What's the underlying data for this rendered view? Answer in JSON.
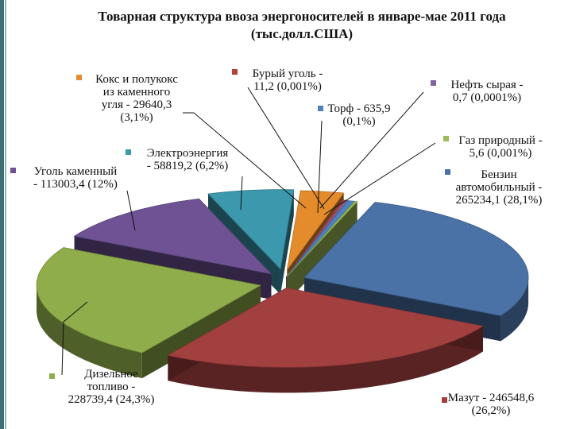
{
  "chart_data": {
    "type": "pie",
    "title_line1": "Товарная структура ввоза энергоносителей в январе-мае 2011 года",
    "title_line2": "(тыс.долл.США)",
    "slices": [
      {
        "name": "Бензин автомобильный",
        "value": 265234.1,
        "percent": 28.1,
        "color": "#4a72a6",
        "label_lines": [
          "Бензин",
          "автомобильный -",
          "265234,1 (28,1%)"
        ]
      },
      {
        "name": "Мазут",
        "value": 246548.6,
        "percent": 26.2,
        "color": "#a23f3f",
        "label_lines": [
          "Мазут - 246548,6",
          "(26,2%)"
        ]
      },
      {
        "name": "Дизельное топливо",
        "value": 228739.4,
        "percent": 24.3,
        "color": "#8fad4a",
        "label_lines": [
          "Дизельное",
          "топливо -",
          "228739,4 (24,3%)"
        ]
      },
      {
        "name": "Уголь каменный",
        "value": 113003.4,
        "percent": 12.0,
        "color": "#6e5294",
        "label_lines": [
          "Уголь каменный",
          "- 113003,4 (12%)"
        ]
      },
      {
        "name": "Электроэнергия",
        "value": 58819.2,
        "percent": 6.2,
        "color": "#3b98ad",
        "label_lines": [
          "Электроэнергия",
          "- 58819,2 (6,2%)"
        ]
      },
      {
        "name": "Кокс и полукокс из каменного угля",
        "value": 29640.3,
        "percent": 3.1,
        "color": "#e48b2c",
        "label_lines": [
          "Кокс и полукокс",
          "из каменного",
          "угля - 29640,3",
          "(3,1%)"
        ]
      },
      {
        "name": "Бурый уголь",
        "value": 11.2,
        "percent": 0.001,
        "color": "#b3423d",
        "label_lines": [
          "Бурый уголь -",
          "11,2 (0,001%)"
        ]
      },
      {
        "name": "Нефть сырая",
        "value": 0.7,
        "percent": 0.0001,
        "color": "#8064a2",
        "label_lines": [
          "Нефть сырая -",
          "0,7 (0,0001%)"
        ]
      },
      {
        "name": "Торф",
        "value": 635.9,
        "percent": 0.1,
        "color": "#4f81bd",
        "label_lines": [
          "Торф - 635,9",
          "(0,1%)"
        ]
      },
      {
        "name": "Газ природный",
        "value": 5.6,
        "percent": 0.001,
        "color": "#9bbb59",
        "label_lines": [
          "Газ природный -",
          "5,6 (0,001%)"
        ]
      }
    ]
  }
}
